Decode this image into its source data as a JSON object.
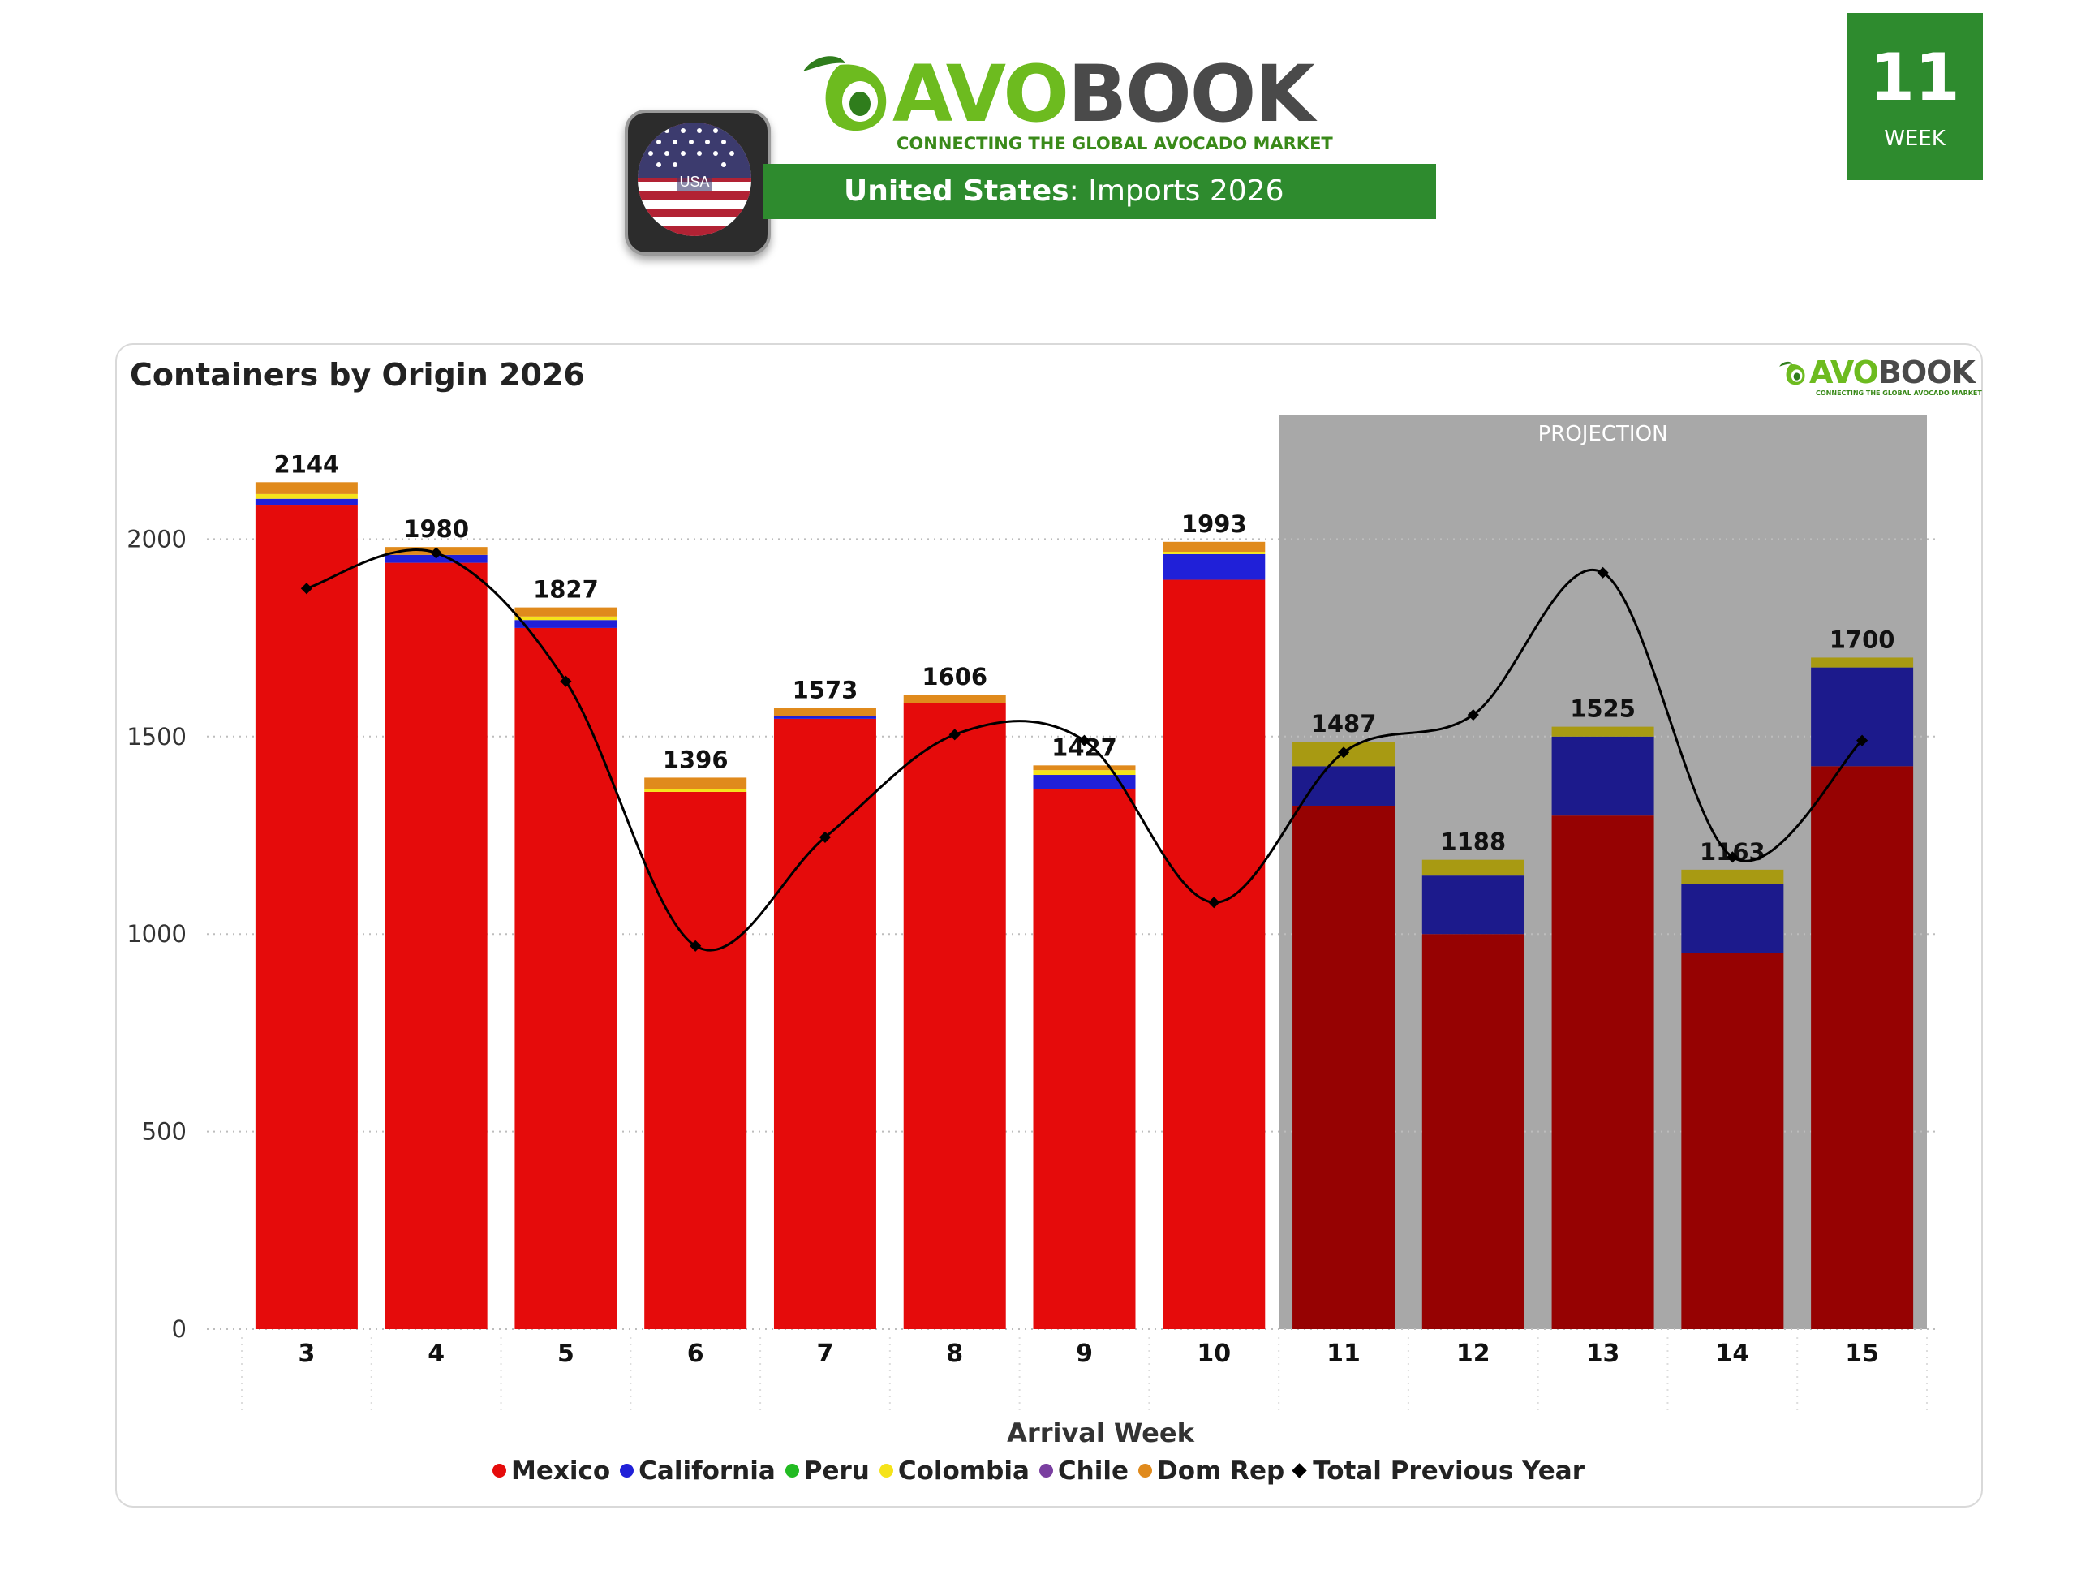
{
  "header": {
    "brand_avo": "AVO",
    "brand_book": "BOOK",
    "tagline": "CONNECTING THE GLOBAL AVOCADO MARKET",
    "country_flag_label": "USA",
    "title_country": "United States",
    "title_rest": ": Imports 2026",
    "week_number": "11",
    "week_label": "WEEK"
  },
  "panel": {
    "title": "Containers by Origin 2026",
    "mini_brand_avo": "AVO",
    "mini_brand_book": "BOOK",
    "mini_tagline": "CONNECTING THE GLOBAL AVOCADO MARKET"
  },
  "chart_data": {
    "type": "bar",
    "stacked": true,
    "title": "Containers by Origin 2026",
    "xlabel": "Arrival Week",
    "ylabel": "",
    "ylim": [
      0,
      2200
    ],
    "yticks": [
      0,
      500,
      1000,
      1500,
      2000
    ],
    "grid": true,
    "legend_position": "bottom",
    "categories": [
      "3",
      "4",
      "5",
      "6",
      "7",
      "8",
      "9",
      "10",
      "11",
      "12",
      "13",
      "14",
      "15"
    ],
    "projection_label": "PROJECTION",
    "projection_from_category": "11",
    "totals": [
      2144,
      1980,
      1827,
      1396,
      1573,
      1606,
      1427,
      1993,
      1487,
      1188,
      1525,
      1163,
      1700
    ],
    "series": [
      {
        "name": "Mexico",
        "color": "#e50b0b",
        "projection_color": "#960202",
        "values": [
          2085,
          1940,
          1775,
          1360,
          1545,
          1585,
          1368,
          1897,
          1325,
          1000,
          1300,
          952,
          1425
        ]
      },
      {
        "name": "California",
        "color": "#2020d8",
        "projection_color": "#1c1a8c",
        "values": [
          17,
          20,
          20,
          0,
          7,
          0,
          35,
          65,
          100,
          148,
          200,
          175,
          250
        ]
      },
      {
        "name": "Peru",
        "color": "#22bb22",
        "projection_color": "#22bb22",
        "values": [
          0,
          0,
          0,
          0,
          0,
          0,
          0,
          0,
          0,
          0,
          0,
          0,
          0
        ]
      },
      {
        "name": "Colombia",
        "color": "#f5e31a",
        "projection_color": "#a89a12",
        "values": [
          12,
          0,
          9,
          8,
          0,
          0,
          12,
          6,
          62,
          40,
          25,
          36,
          25
        ]
      },
      {
        "name": "Chile",
        "color": "#7a3fa0",
        "projection_color": "#7a3fa0",
        "values": [
          0,
          0,
          0,
          0,
          0,
          0,
          0,
          0,
          0,
          0,
          0,
          0,
          0
        ]
      },
      {
        "name": "Dom Rep",
        "color": "#e08a1c",
        "projection_color": "#e08a1c",
        "values": [
          30,
          20,
          23,
          28,
          21,
          21,
          12,
          25,
          0,
          0,
          0,
          0,
          0
        ]
      },
      {
        "name": "Total Previous Year",
        "type": "line",
        "color": "#000000",
        "values": [
          1875,
          1965,
          1640,
          970,
          1245,
          1505,
          1490,
          1080,
          1460,
          1555,
          1915,
          1195,
          1490
        ]
      }
    ]
  }
}
